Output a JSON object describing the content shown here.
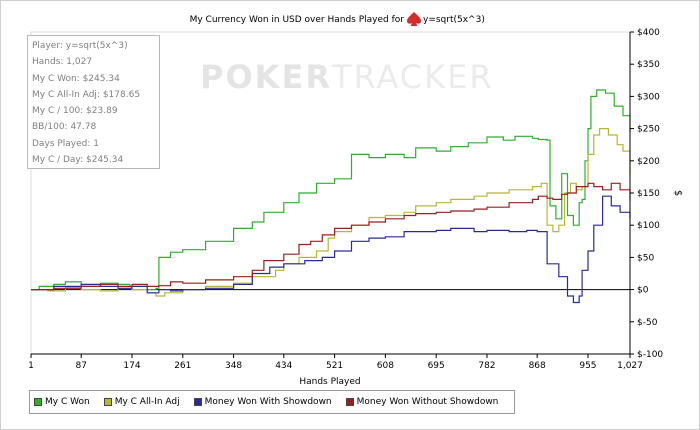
{
  "watermark": {
    "part1": "POKER",
    "part2": "TRACKER"
  },
  "stats": [
    "Player: y=sqrt(5x^3)",
    "Hands: 1,027",
    "My C Won: $245.34",
    "My C All-In Adj: $178.65",
    "My C / 100: $23.89",
    "BB/100: 47.78",
    "Days Played: 1",
    "My C / Day: $245.34"
  ],
  "chart_data": {
    "type": "line",
    "title": "My Currency Won in USD over Hands Played for",
    "title_player": "y=sqrt(5x^3)",
    "xlabel": "Hands Played",
    "ylabel": "$",
    "xlim": [
      1,
      1027
    ],
    "ylim": [
      -100,
      400
    ],
    "x_ticks": [
      "1",
      "87",
      "174",
      "261",
      "348",
      "434",
      "521",
      "608",
      "695",
      "782",
      "868",
      "955",
      "1,027"
    ],
    "y_ticks": [
      "$400",
      "$350",
      "$300",
      "$250",
      "$200",
      "$150",
      "$100",
      "$50",
      "$0",
      "$-50",
      "$-100"
    ],
    "y_tick_values": [
      400,
      350,
      300,
      250,
      200,
      150,
      100,
      50,
      0,
      -50,
      -100
    ],
    "zero_line": true,
    "grid": false,
    "legend_position": "bottom",
    "series": [
      {
        "name": "My C Won",
        "color": "#2fae2f",
        "points": [
          [
            1,
            0
          ],
          [
            15,
            5
          ],
          [
            40,
            8
          ],
          [
            60,
            12
          ],
          [
            87,
            5
          ],
          [
            120,
            10
          ],
          [
            150,
            8
          ],
          [
            170,
            5
          ],
          [
            200,
            0
          ],
          [
            215,
            2
          ],
          [
            220,
            50
          ],
          [
            240,
            58
          ],
          [
            261,
            62
          ],
          [
            300,
            75
          ],
          [
            348,
            95
          ],
          [
            380,
            105
          ],
          [
            400,
            120
          ],
          [
            434,
            135
          ],
          [
            460,
            150
          ],
          [
            490,
            165
          ],
          [
            521,
            172
          ],
          [
            540,
            172
          ],
          [
            550,
            210
          ],
          [
            580,
            205
          ],
          [
            608,
            210
          ],
          [
            640,
            205
          ],
          [
            660,
            220
          ],
          [
            695,
            215
          ],
          [
            720,
            222
          ],
          [
            750,
            228
          ],
          [
            782,
            237
          ],
          [
            810,
            232
          ],
          [
            830,
            238
          ],
          [
            860,
            235
          ],
          [
            870,
            233
          ],
          [
            885,
            232
          ],
          [
            890,
            130
          ],
          [
            900,
            110
          ],
          [
            910,
            180
          ],
          [
            920,
            115
          ],
          [
            930,
            100
          ],
          [
            940,
            135
          ],
          [
            945,
            140
          ],
          [
            950,
            200
          ],
          [
            955,
            250
          ],
          [
            960,
            300
          ],
          [
            970,
            310
          ],
          [
            985,
            305
          ],
          [
            1000,
            285
          ],
          [
            1015,
            270
          ],
          [
            1027,
            245
          ]
        ]
      },
      {
        "name": "My C All-In Adj",
        "color": "#b5b832",
        "points": [
          [
            1,
            0
          ],
          [
            30,
            -2
          ],
          [
            60,
            3
          ],
          [
            87,
            0
          ],
          [
            120,
            -2
          ],
          [
            150,
            2
          ],
          [
            174,
            0
          ],
          [
            200,
            -5
          ],
          [
            215,
            -10
          ],
          [
            230,
            -5
          ],
          [
            261,
            0
          ],
          [
            300,
            5
          ],
          [
            348,
            10
          ],
          [
            380,
            20
          ],
          [
            420,
            30
          ],
          [
            434,
            40
          ],
          [
            460,
            50
          ],
          [
            490,
            60
          ],
          [
            510,
            80
          ],
          [
            521,
            90
          ],
          [
            550,
            100
          ],
          [
            580,
            112
          ],
          [
            608,
            115
          ],
          [
            640,
            120
          ],
          [
            660,
            130
          ],
          [
            695,
            135
          ],
          [
            720,
            140
          ],
          [
            760,
            145
          ],
          [
            782,
            150
          ],
          [
            820,
            155
          ],
          [
            860,
            160
          ],
          [
            875,
            165
          ],
          [
            885,
            100
          ],
          [
            895,
            90
          ],
          [
            905,
            100
          ],
          [
            915,
            150
          ],
          [
            925,
            165
          ],
          [
            935,
            155
          ],
          [
            945,
            160
          ],
          [
            955,
            210
          ],
          [
            965,
            240
          ],
          [
            975,
            250
          ],
          [
            990,
            240
          ],
          [
            1005,
            225
          ],
          [
            1015,
            215
          ],
          [
            1027,
            178
          ]
        ]
      },
      {
        "name": "Money Won With Showdown",
        "color": "#2a2a9c",
        "points": [
          [
            1,
            0
          ],
          [
            40,
            5
          ],
          [
            87,
            8
          ],
          [
            120,
            5
          ],
          [
            150,
            2
          ],
          [
            174,
            5
          ],
          [
            200,
            -5
          ],
          [
            220,
            0
          ],
          [
            240,
            -2
          ],
          [
            261,
            0
          ],
          [
            300,
            2
          ],
          [
            348,
            8
          ],
          [
            380,
            25
          ],
          [
            410,
            35
          ],
          [
            434,
            40
          ],
          [
            470,
            45
          ],
          [
            500,
            50
          ],
          [
            521,
            60
          ],
          [
            550,
            75
          ],
          [
            580,
            80
          ],
          [
            608,
            82
          ],
          [
            640,
            90
          ],
          [
            695,
            92
          ],
          [
            720,
            95
          ],
          [
            760,
            90
          ],
          [
            782,
            92
          ],
          [
            820,
            90
          ],
          [
            850,
            92
          ],
          [
            868,
            90
          ],
          [
            885,
            40
          ],
          [
            905,
            20
          ],
          [
            920,
            -10
          ],
          [
            930,
            -20
          ],
          [
            940,
            -10
          ],
          [
            945,
            30
          ],
          [
            955,
            60
          ],
          [
            965,
            100
          ],
          [
            980,
            145
          ],
          [
            995,
            130
          ],
          [
            1010,
            120
          ],
          [
            1027,
            110
          ]
        ]
      },
      {
        "name": "Money Won Without Showdown",
        "color": "#9a1f1f",
        "points": [
          [
            1,
            0
          ],
          [
            40,
            2
          ],
          [
            87,
            5
          ],
          [
            120,
            8
          ],
          [
            150,
            5
          ],
          [
            174,
            8
          ],
          [
            200,
            5
          ],
          [
            220,
            6
          ],
          [
            240,
            12
          ],
          [
            261,
            10
          ],
          [
            300,
            15
          ],
          [
            348,
            20
          ],
          [
            380,
            30
          ],
          [
            400,
            45
          ],
          [
            434,
            55
          ],
          [
            460,
            70
          ],
          [
            480,
            75
          ],
          [
            500,
            85
          ],
          [
            521,
            95
          ],
          [
            550,
            100
          ],
          [
            580,
            105
          ],
          [
            608,
            110
          ],
          [
            640,
            115
          ],
          [
            660,
            118
          ],
          [
            695,
            120
          ],
          [
            720,
            122
          ],
          [
            760,
            125
          ],
          [
            782,
            128
          ],
          [
            820,
            135
          ],
          [
            860,
            140
          ],
          [
            870,
            145
          ],
          [
            885,
            142
          ],
          [
            895,
            140
          ],
          [
            910,
            148
          ],
          [
            920,
            150
          ],
          [
            935,
            160
          ],
          [
            945,
            160
          ],
          [
            955,
            165
          ],
          [
            965,
            160
          ],
          [
            980,
            155
          ],
          [
            995,
            165
          ],
          [
            1010,
            155
          ],
          [
            1027,
            138
          ]
        ]
      }
    ]
  }
}
